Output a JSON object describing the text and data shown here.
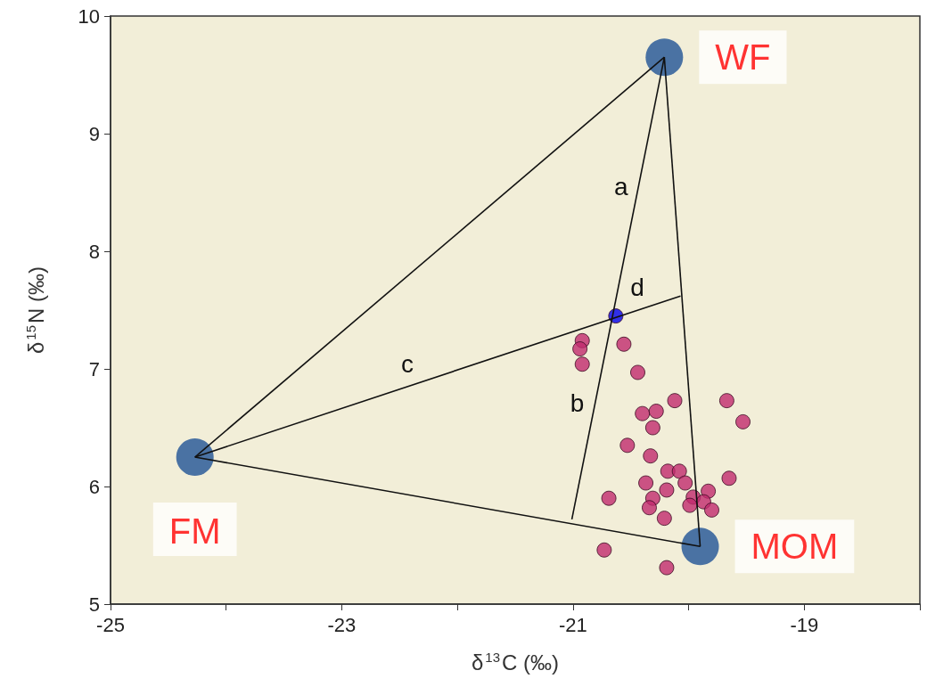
{
  "chart_data": {
    "type": "scatter",
    "xlabel": "δ$^{13}$C (‰)",
    "ylabel": "δ$^{15}$N (‰)",
    "xlim": [
      -25,
      -18
    ],
    "xticks": [
      -25,
      {
        "value": -24,
        "label": null
      },
      -23,
      {
        "value": -22,
        "label": null
      },
      -21,
      {
        "value": -20,
        "label": null
      },
      -19,
      {
        "value": -18,
        "label": null
      }
    ],
    "ylim": [
      5,
      10
    ],
    "yticks": [
      5,
      6,
      7,
      8,
      9,
      10
    ],
    "grid": false,
    "series": [
      {
        "type": "line",
        "color": "#111111",
        "marker": "none",
        "x": [
          -24.27,
          -20.21
        ],
        "values": [
          6.25,
          9.65
        ]
      },
      {
        "type": "line",
        "color": "#111111",
        "marker": "none",
        "x": [
          -24.27,
          -19.9
        ],
        "values": [
          6.25,
          5.49
        ]
      },
      {
        "type": "line",
        "color": "#111111",
        "marker": "none",
        "x": [
          -20.21,
          -19.9
        ],
        "values": [
          9.65,
          5.49
        ]
      },
      {
        "type": "line",
        "color": "#111111",
        "marker": "none",
        "x": [
          -21.01,
          -20.21
        ],
        "values": [
          5.72,
          9.65
        ]
      },
      {
        "type": "line",
        "color": "#111111",
        "marker": "none",
        "x": [
          -24.27,
          -20.07
        ],
        "values": [
          6.25,
          7.62
        ]
      },
      {
        "color": "#c02a6e",
        "marker": "circle",
        "x": [
          -20.92,
          -20.94,
          -20.92,
          -20.56,
          -20.44,
          -20.12,
          -19.67,
          -19.53,
          -20.4,
          -20.28,
          -20.31,
          -20.53,
          -20.33,
          -20.18,
          -20.08,
          -20.03,
          -20.37,
          -20.19,
          -20.69,
          -20.31,
          -20.34,
          -19.65,
          -19.83,
          -19.96,
          -19.87,
          -19.99,
          -19.8,
          -20.21,
          -20.73,
          -20.19
        ],
        "values": [
          7.24,
          7.17,
          7.04,
          7.21,
          6.97,
          6.73,
          6.73,
          6.55,
          6.62,
          6.64,
          6.5,
          6.35,
          6.26,
          6.13,
          6.13,
          6.03,
          6.03,
          5.97,
          5.9,
          5.9,
          5.82,
          6.07,
          5.96,
          5.91,
          5.87,
          5.84,
          5.8,
          5.73,
          5.46,
          5.31
        ]
      },
      {
        "type": "scatter",
        "color": "#0000ee",
        "marker": "circle",
        "x": [
          -20.63
        ],
        "values": [
          7.45
        ]
      },
      {
        "type": "bubble",
        "color": "#1f5296",
        "marker": "circle",
        "x": [
          -20.21,
          -24.27,
          -19.9
        ],
        "values": [
          9.65,
          6.25,
          5.49
        ],
        "sizes": [
          1,
          1,
          1
        ],
        "value_labels": [
          "WF",
          "FM",
          "MOM"
        ]
      }
    ],
    "annotations": [
      {
        "text": "a",
        "x": -20.46,
        "y": 8.4
      },
      {
        "text": "b",
        "x": -20.84,
        "y": 6.56
      },
      {
        "text": "c",
        "x": -22.31,
        "y": 6.89
      },
      {
        "text": "d",
        "x": -20.32,
        "y": 7.54
      }
    ]
  }
}
